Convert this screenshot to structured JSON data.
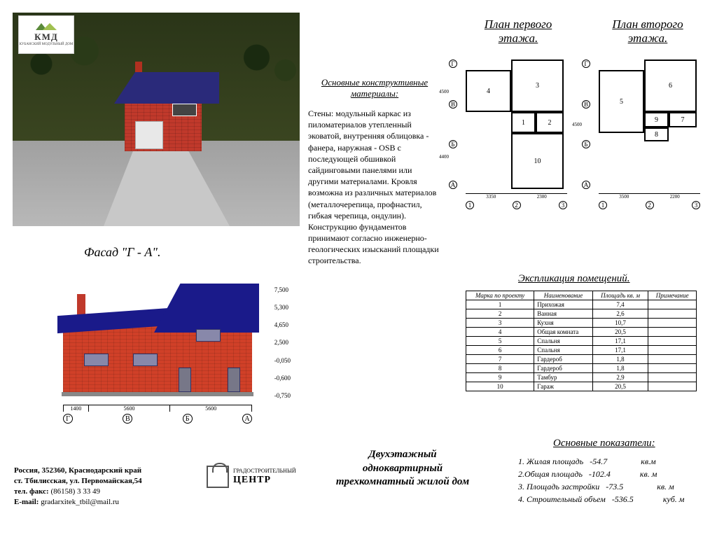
{
  "logo": {
    "brand": "КМД",
    "sub": "КУБАНСКИЙ МОДУЛЬНЫЙ ДОМ"
  },
  "facade_label": "Фасад \"Г - А\".",
  "elevation": {
    "heights": [
      "7,500",
      "5,300",
      "4,650",
      "2,500",
      "-0,050",
      "-0,600",
      "-0,750"
    ],
    "axis": [
      "Г",
      "В",
      "Б",
      "А"
    ],
    "dimh": [
      "1400",
      "5600",
      "5600"
    ]
  },
  "materials": {
    "title": "Основные конструктивные материалы:",
    "body": "Стены: модульный каркас из пиломатериалов утепленный эковатой, внутренняя облицовка - фанера, наружная - OSB с последующей обшивкой сайдинговыми панелями или другими материалами. Кровля возможна из различных материалов (металлочерепица, профнастил, гибкая черепица, ондулин). Конструкцию фундаментов принимают согласно инженерно- геологических изысканий площадки строительства."
  },
  "plan1_title": "План первого этажа.",
  "plan2_title": "План второго этажа.",
  "plan_axis_v": [
    "Г",
    "В",
    "Б",
    "А"
  ],
  "plan_axis_h": [
    "1",
    "2",
    "3"
  ],
  "plan1": {
    "dimh": [
      "3350",
      "2300"
    ],
    "dimv": [
      "4500",
      "4400"
    ],
    "rooms": [
      "3",
      "4",
      "1",
      "2",
      "10"
    ]
  },
  "plan2": {
    "dimh": [
      "3500",
      "2200"
    ],
    "dimv": [
      "4500"
    ],
    "rooms": [
      "5",
      "6",
      "7",
      "8",
      "9"
    ]
  },
  "expl_title": "Экспликация помещений.",
  "expl_headers": [
    "Марка по проекту",
    "Наименование",
    "Площадь кв. м",
    "Примечание"
  ],
  "expl_rows": [
    [
      "1",
      "Прихожая",
      "7,4",
      ""
    ],
    [
      "2",
      "Ванная",
      "2,6",
      ""
    ],
    [
      "3",
      "Кухня",
      "10,7",
      ""
    ],
    [
      "4",
      "Общая комната",
      "20,5",
      ""
    ],
    [
      "5",
      "Спальня",
      "17,1",
      ""
    ],
    [
      "6",
      "Спальня",
      "17,1",
      ""
    ],
    [
      "7",
      "Гардероб",
      "1,8",
      ""
    ],
    [
      "8",
      "Гардероб",
      "1,8",
      ""
    ],
    [
      "9",
      "Тамбур",
      "2,9",
      ""
    ],
    [
      "10",
      "Гараж",
      "20,5",
      ""
    ]
  ],
  "ind_title": "Основные показатели:",
  "indicators": [
    {
      "k": "1. Жилая площадь",
      "v": "-54.7",
      "u": "кв.м"
    },
    {
      "k": "2.Общая площадь",
      "v": "-102.4",
      "u": "кв. м"
    },
    {
      "k": "3. Площадь застройки",
      "v": "-73.5",
      "u": "кв. м"
    },
    {
      "k": "4. Строительный объем",
      "v": "-536.5",
      "u": "куб. м"
    }
  ],
  "project_title": "Двухэтажный одноквартирный трехкомнатный жилой дом",
  "address": {
    "l1": "Россия, 352360, Краснодарский край",
    "l2": "ст. Тбилисская, ул. Первомайская,54",
    "l3": "тел. факс: (86158) 3 33 49",
    "l4": "E-mail: gradarxitek_tbil@mail.ru"
  },
  "centr": {
    "l1": "ГРАДОСТРОИТЕЛЬНЫЙ",
    "l2": "ЦЕНТР"
  }
}
